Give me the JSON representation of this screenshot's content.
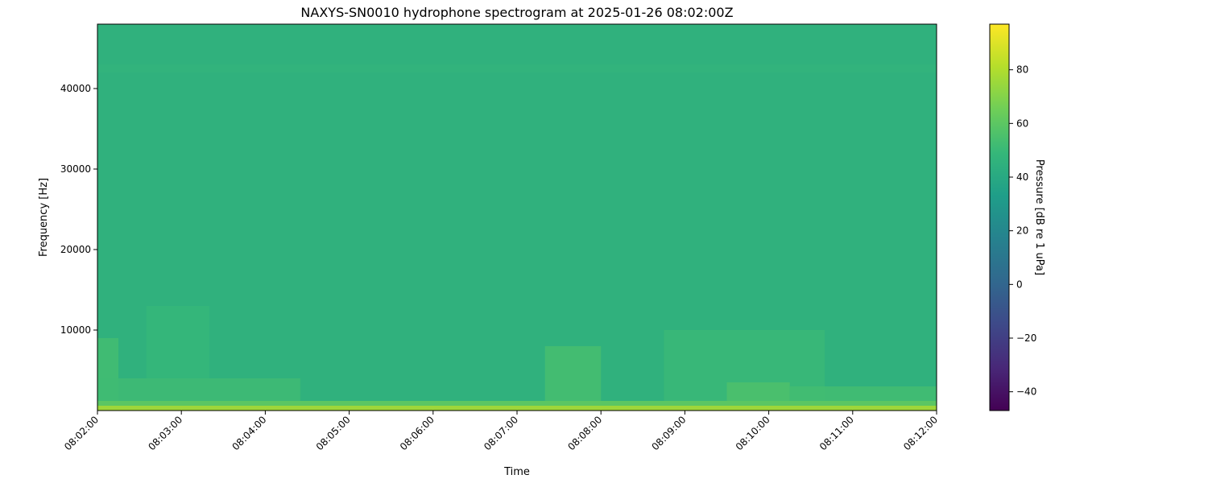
{
  "chart_data": {
    "type": "heatmap",
    "title": "NAXYS-SN0010 hydrophone spectrogram at 2025-01-26 08:02:00Z",
    "xlabel": "Time",
    "ylabel": "Frequency [Hz]",
    "colorbar_label": "Pressure [dB re 1 uPa]",
    "colormap": "viridis",
    "x_ticks": [
      "08:02:00",
      "08:03:00",
      "08:04:00",
      "08:05:00",
      "08:06:00",
      "08:07:00",
      "08:08:00",
      "08:09:00",
      "08:10:00",
      "08:11:00",
      "08:12:00"
    ],
    "xlim": [
      "08:02:00",
      "08:12:00"
    ],
    "y_ticks": [
      10000,
      20000,
      30000,
      40000
    ],
    "ylim": [
      0,
      48000
    ],
    "colorbar_ticks": [
      -40,
      -20,
      0,
      20,
      40,
      60,
      80
    ],
    "clim": [
      -47,
      97
    ],
    "background_level_db": 45,
    "regions": [
      {
        "t_start": "08:02:00",
        "t_end": "08:12:00",
        "f_low": 0,
        "f_high": 600,
        "level_db": 80
      },
      {
        "t_start": "08:02:00",
        "t_end": "08:12:00",
        "f_low": 600,
        "f_high": 1200,
        "level_db": 62
      },
      {
        "t_start": "08:02:00",
        "t_end": "08:02:15",
        "f_low": 1200,
        "f_high": 9000,
        "level_db": 53
      },
      {
        "t_start": "08:02:00",
        "t_end": "08:04:25",
        "f_low": 1200,
        "f_high": 4000,
        "level_db": 52
      },
      {
        "t_start": "08:02:35",
        "t_end": "08:03:20",
        "f_low": 4000,
        "f_high": 13000,
        "level_db": 49
      },
      {
        "t_start": "08:07:20",
        "t_end": "08:08:00",
        "f_low": 1200,
        "f_high": 8000,
        "level_db": 54
      },
      {
        "t_start": "08:08:45",
        "t_end": "08:10:40",
        "f_low": 1200,
        "f_high": 10000,
        "level_db": 50
      },
      {
        "t_start": "08:09:30",
        "t_end": "08:10:15",
        "f_low": 1200,
        "f_high": 3500,
        "level_db": 56
      },
      {
        "t_start": "08:10:15",
        "t_end": "08:12:00",
        "f_low": 1200,
        "f_high": 3000,
        "level_db": 53
      },
      {
        "t_start": "08:02:00",
        "t_end": "08:12:00",
        "f_low": 42000,
        "f_high": 43000,
        "level_db": 47
      }
    ]
  }
}
